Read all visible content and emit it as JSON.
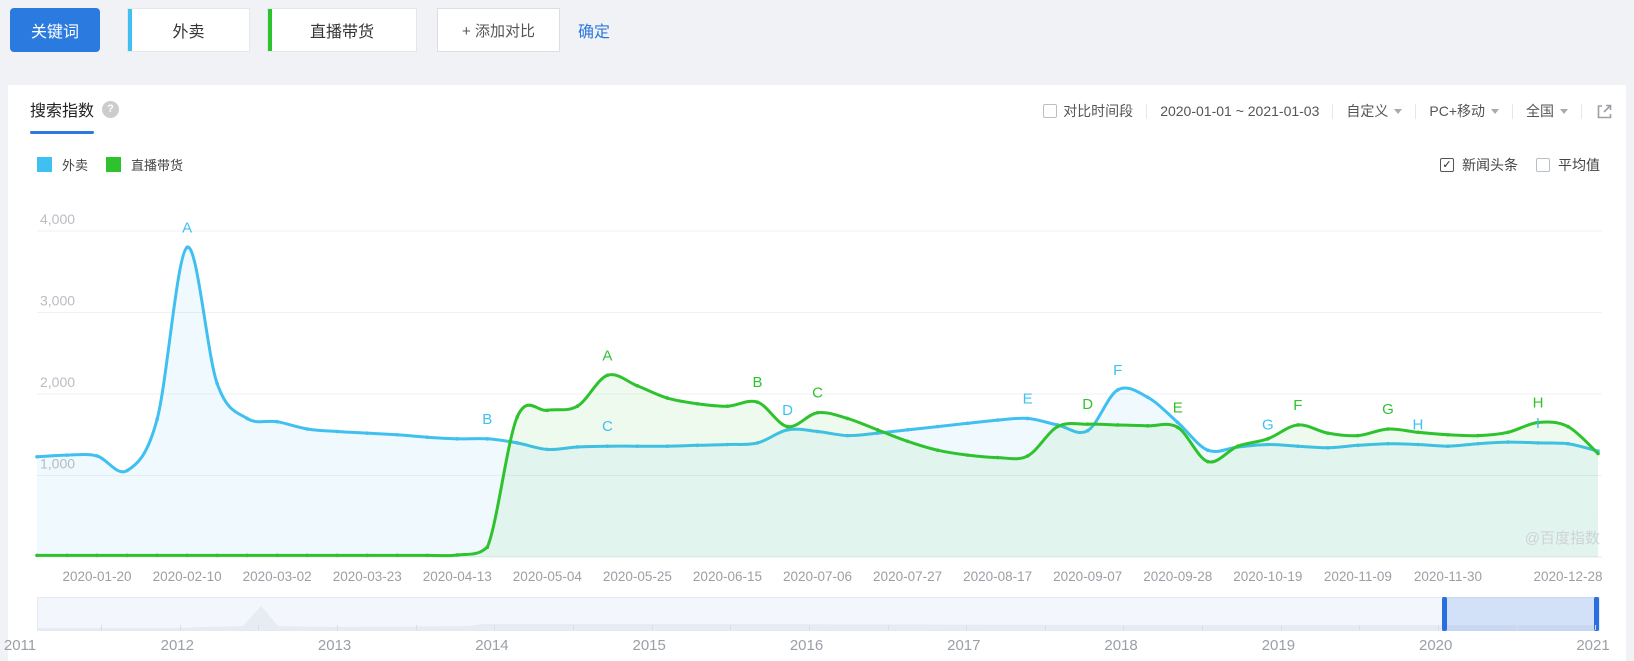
{
  "topbar": {
    "keyword_label": "关键词",
    "keywords": [
      {
        "text": "外卖",
        "color": "#40c0f0"
      },
      {
        "text": "直播带货",
        "color": "#2fc22f"
      }
    ],
    "add_compare_label": "+ 添加对比",
    "confirm_label": "确定"
  },
  "panel": {
    "tab_title": "搜索指数",
    "help_icon": "?",
    "controls": {
      "compare_period_label": "对比时间段",
      "date_range": "2020-01-01 ~ 2021-01-03",
      "range_mode": "自定义",
      "platform": "PC+移动",
      "region": "全国"
    },
    "overlays": {
      "news_label": "新闻头条",
      "news_checked": true,
      "check_glyph": "✓",
      "average_label": "平均值",
      "average_checked": false
    },
    "watermark": "@百度指数"
  },
  "chart_data": {
    "type": "line",
    "title": "搜索指数",
    "grid": "horizontal",
    "legend_position": "top-left",
    "ylim": [
      0,
      4000
    ],
    "y_ticks": [
      1000,
      2000,
      3000,
      4000
    ],
    "y_tick_labels": [
      "1,000",
      "2,000",
      "3,000",
      "4,000"
    ],
    "x_unit": "week",
    "x_tick_labels": [
      "2020-01-20",
      "2020-02-10",
      "2020-03-02",
      "2020-03-23",
      "2020-04-13",
      "2020-05-04",
      "2020-05-25",
      "2020-06-15",
      "2020-07-06",
      "2020-07-27",
      "2020-08-17",
      "2020-09-07",
      "2020-09-28",
      "2020-10-19",
      "2020-11-09",
      "2020-11-30",
      "2020-12-28"
    ],
    "x_tick_week_indices": [
      2,
      5,
      8,
      11,
      14,
      17,
      20,
      23,
      26,
      29,
      32,
      35,
      38,
      41,
      44,
      47,
      51
    ],
    "series": [
      {
        "name": "外卖",
        "color": "#40c0f0",
        "fill": "rgba(64,192,240,0.08)",
        "values": [
          1230,
          1250,
          1240,
          1060,
          1690,
          3800,
          2130,
          1700,
          1660,
          1570,
          1540,
          1520,
          1500,
          1470,
          1450,
          1450,
          1400,
          1320,
          1350,
          1360,
          1360,
          1360,
          1370,
          1380,
          1400,
          1560,
          1540,
          1490,
          1520,
          1560,
          1600,
          1640,
          1680,
          1700,
          1620,
          1550,
          2050,
          1960,
          1650,
          1310,
          1350,
          1380,
          1360,
          1340,
          1370,
          1390,
          1380,
          1360,
          1390,
          1410,
          1400,
          1390,
          1300
        ]
      },
      {
        "name": "直播带货",
        "color": "#2fc22f",
        "fill": "rgba(47,194,47,0.08)",
        "values": [
          20,
          20,
          20,
          20,
          20,
          20,
          20,
          20,
          20,
          20,
          20,
          20,
          20,
          20,
          25,
          120,
          1720,
          1800,
          1850,
          2230,
          2100,
          1950,
          1880,
          1850,
          1900,
          1600,
          1770,
          1700,
          1560,
          1420,
          1310,
          1250,
          1220,
          1240,
          1600,
          1630,
          1620,
          1610,
          1590,
          1170,
          1360,
          1450,
          1620,
          1520,
          1490,
          1570,
          1530,
          1500,
          1490,
          1530,
          1650,
          1600,
          1270
        ]
      }
    ],
    "news_markers": [
      {
        "series": 0,
        "label": "A",
        "week": 5
      },
      {
        "series": 0,
        "label": "B",
        "week": 15
      },
      {
        "series": 0,
        "label": "C",
        "week": 19
      },
      {
        "series": 0,
        "label": "D",
        "week": 25
      },
      {
        "series": 0,
        "label": "E",
        "week": 33
      },
      {
        "series": 0,
        "label": "F",
        "week": 36
      },
      {
        "series": 0,
        "label": "G",
        "week": 41
      },
      {
        "series": 0,
        "label": "H",
        "week": 46
      },
      {
        "series": 0,
        "label": "I",
        "week": 50
      },
      {
        "series": 1,
        "label": "A",
        "week": 19
      },
      {
        "series": 1,
        "label": "B",
        "week": 24
      },
      {
        "series": 1,
        "label": "C",
        "week": 26
      },
      {
        "series": 1,
        "label": "D",
        "week": 35
      },
      {
        "series": 1,
        "label": "E",
        "week": 38
      },
      {
        "series": 1,
        "label": "F",
        "week": 42
      },
      {
        "series": 1,
        "label": "G",
        "week": 45
      },
      {
        "series": 1,
        "label": "H",
        "week": 50
      }
    ]
  },
  "timeline": {
    "years": [
      "2011",
      "2012",
      "2013",
      "2014",
      "2015",
      "2016",
      "2017",
      "2018",
      "2019",
      "2020",
      "2021"
    ],
    "selected_range": [
      "2020",
      "2021"
    ]
  },
  "colors": {
    "accent_blue": "#2b7ae0",
    "series_waimai": "#40c0f0",
    "series_zhibo": "#2fc22f"
  }
}
